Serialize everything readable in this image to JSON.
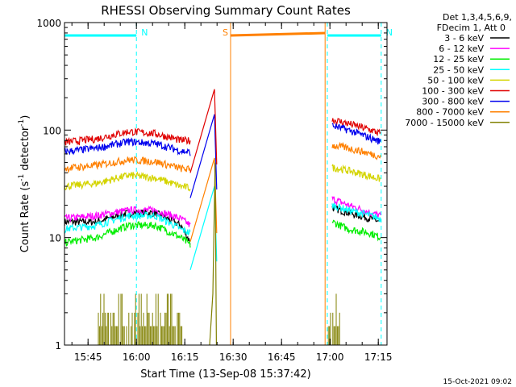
{
  "chart_data": {
    "type": "line",
    "title": "RHESSI Observing Summary Count Rates",
    "xlabel": "Start Time (13-Sep-08 15:37:42)",
    "ylabel_main": "Count Rate (s",
    "ylabel_sup1": "-1",
    "ylabel_mid": " detector",
    "ylabel_sup2": "-1",
    "ylabel_end": ")",
    "y_scale": "log",
    "ylim": [
      1,
      1000
    ],
    "xlim_minutes": [
      0,
      100
    ],
    "x_ticks": [
      {
        "t": 7.3,
        "label": "15:45"
      },
      {
        "t": 22.3,
        "label": "16:00"
      },
      {
        "t": 37.3,
        "label": "16:15"
      },
      {
        "t": 52.3,
        "label": "16:30"
      },
      {
        "t": 67.3,
        "label": "16:45"
      },
      {
        "t": 82.3,
        "label": "17:00"
      },
      {
        "t": 97.3,
        "label": "17:15"
      }
    ],
    "y_ticks": [
      {
        "v": 1,
        "label": "1"
      },
      {
        "v": 10,
        "label": "10"
      },
      {
        "v": 100,
        "label": "100"
      },
      {
        "v": 1000,
        "label": "1000"
      }
    ],
    "legend_header": [
      "Det 1,3,4,5,6,9,",
      "FDecim 1, Att 0"
    ],
    "legend_position": "right",
    "series": [
      {
        "name": "3 - 6 keV",
        "color": "#000000",
        "pre": [
          [
            0,
            14
          ],
          [
            10,
            14
          ],
          [
            20,
            17
          ],
          [
            28,
            17
          ],
          [
            36,
            13
          ],
          [
            39,
            9
          ]
        ],
        "post": [
          [
            83,
            19
          ],
          [
            88,
            17
          ],
          [
            95,
            15
          ],
          [
            98,
            14
          ]
        ]
      },
      {
        "name": "6 - 12 keV",
        "color": "#ff00ff",
        "pre": [
          [
            0,
            15
          ],
          [
            10,
            16
          ],
          [
            20,
            18
          ],
          [
            28,
            18
          ],
          [
            36,
            15
          ],
          [
            39,
            13
          ]
        ],
        "post": [
          [
            83,
            23
          ],
          [
            88,
            20
          ],
          [
            95,
            17
          ],
          [
            98,
            16
          ]
        ]
      },
      {
        "name": "12 - 25 keV",
        "color": "#00ee00",
        "pre": [
          [
            0,
            9
          ],
          [
            10,
            10
          ],
          [
            20,
            13
          ],
          [
            28,
            13
          ],
          [
            36,
            10
          ],
          [
            39,
            8.5
          ]
        ],
        "post": [
          [
            83,
            14
          ],
          [
            88,
            12
          ],
          [
            95,
            11
          ],
          [
            98,
            10
          ]
        ]
      },
      {
        "name": "25 - 50 keV",
        "color": "#00ffff",
        "pre": [
          [
            0,
            12
          ],
          [
            10,
            13
          ],
          [
            20,
            16
          ],
          [
            28,
            16
          ],
          [
            36,
            12
          ],
          [
            39,
            11
          ]
        ],
        "post": [
          [
            83,
            20
          ],
          [
            88,
            18
          ],
          [
            95,
            16
          ],
          [
            98,
            15
          ]
        ]
      },
      {
        "name": "50 - 100 keV",
        "color": "#d4d400",
        "pre": [
          [
            0,
            30
          ],
          [
            10,
            32
          ],
          [
            20,
            38
          ],
          [
            28,
            36
          ],
          [
            36,
            30
          ],
          [
            39,
            29
          ]
        ],
        "post": [
          [
            83,
            45
          ],
          [
            88,
            42
          ],
          [
            95,
            37
          ],
          [
            98,
            35
          ]
        ]
      },
      {
        "name": "100 - 300 keV",
        "color": "#e00000",
        "pre": [
          [
            0,
            77
          ],
          [
            10,
            83
          ],
          [
            20,
            97
          ],
          [
            28,
            93
          ],
          [
            36,
            80
          ],
          [
            39,
            80
          ]
        ],
        "post": [
          [
            83,
            125
          ],
          [
            88,
            115
          ],
          [
            95,
            100
          ],
          [
            98,
            93
          ]
        ]
      },
      {
        "name": "300 - 800 keV",
        "color": "#0000ee",
        "pre": [
          [
            0,
            63
          ],
          [
            10,
            68
          ],
          [
            20,
            78
          ],
          [
            28,
            75
          ],
          [
            36,
            64
          ],
          [
            39,
            62
          ]
        ],
        "post": [
          [
            83,
            110
          ],
          [
            88,
            100
          ],
          [
            95,
            84
          ],
          [
            98,
            78
          ]
        ]
      },
      {
        "name": "800 - 7000 keV",
        "color": "#ff8000",
        "pre": [
          [
            0,
            44
          ],
          [
            10,
            47
          ],
          [
            20,
            53
          ],
          [
            28,
            51
          ],
          [
            36,
            44
          ],
          [
            39,
            43
          ]
        ],
        "post": [
          [
            83,
            72
          ],
          [
            88,
            68
          ],
          [
            95,
            60
          ],
          [
            98,
            57
          ]
        ]
      },
      {
        "name": "7000 - 15000 keV",
        "color": "#808000",
        "pre": [],
        "post": []
      }
    ],
    "annotations": [
      {
        "label": "N",
        "color": "#00ffff",
        "start": 0,
        "end": 22.3
      },
      {
        "label": "N",
        "color": "#00ffff",
        "start": 81.5,
        "end": 98.2
      },
      {
        "label": "S",
        "color": "#ff8000",
        "start": 51.5,
        "end": 80.8
      }
    ],
    "timestamp": "15-Oct-2021 09:02"
  }
}
